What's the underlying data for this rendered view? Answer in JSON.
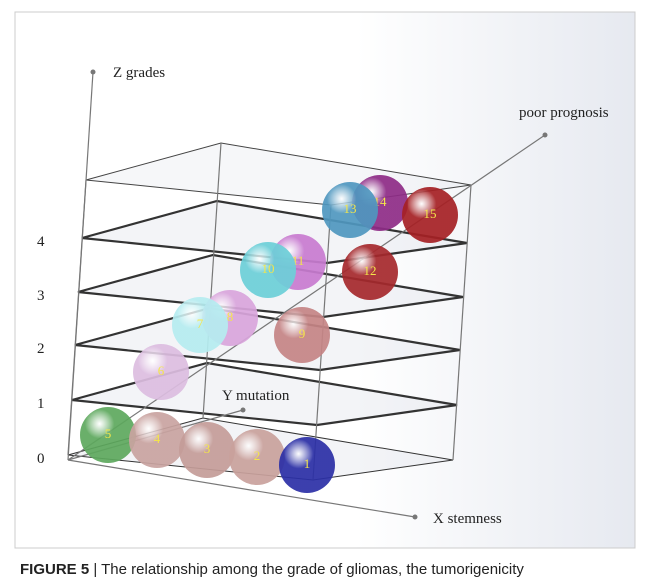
{
  "figure": {
    "axes": {
      "z": "Z grades",
      "y": "Y mutation",
      "x": "X stemness",
      "diagonal": "poor prognosis"
    },
    "levels": [
      "0",
      "1",
      "2",
      "3",
      "4"
    ],
    "spheres": [
      {
        "label": "1",
        "color": "#2b2fa6"
      },
      {
        "label": "2",
        "color": "#c9a19c"
      },
      {
        "label": "3",
        "color": "#c49c98"
      },
      {
        "label": "4",
        "color": "#c9a3a0"
      },
      {
        "label": "5",
        "color": "#5da85d"
      },
      {
        "label": "6",
        "color": "#dcbde0"
      },
      {
        "label": "7",
        "color": "#b5ecf0"
      },
      {
        "label": "8",
        "color": "#d9a5dc"
      },
      {
        "label": "9",
        "color": "#c58485"
      },
      {
        "label": "10",
        "color": "#6ccfd8"
      },
      {
        "label": "11",
        "color": "#c87bd0"
      },
      {
        "label": "12",
        "color": "#a5282c"
      },
      {
        "label": "13",
        "color": "#4f97bf"
      },
      {
        "label": "14",
        "color": "#8e2b86"
      },
      {
        "label": "15",
        "color": "#a52024"
      }
    ],
    "caption": {
      "tag": "FIGURE 5",
      "text": " | The relationship among the grade of gliomas, the tumorigenicity"
    }
  }
}
